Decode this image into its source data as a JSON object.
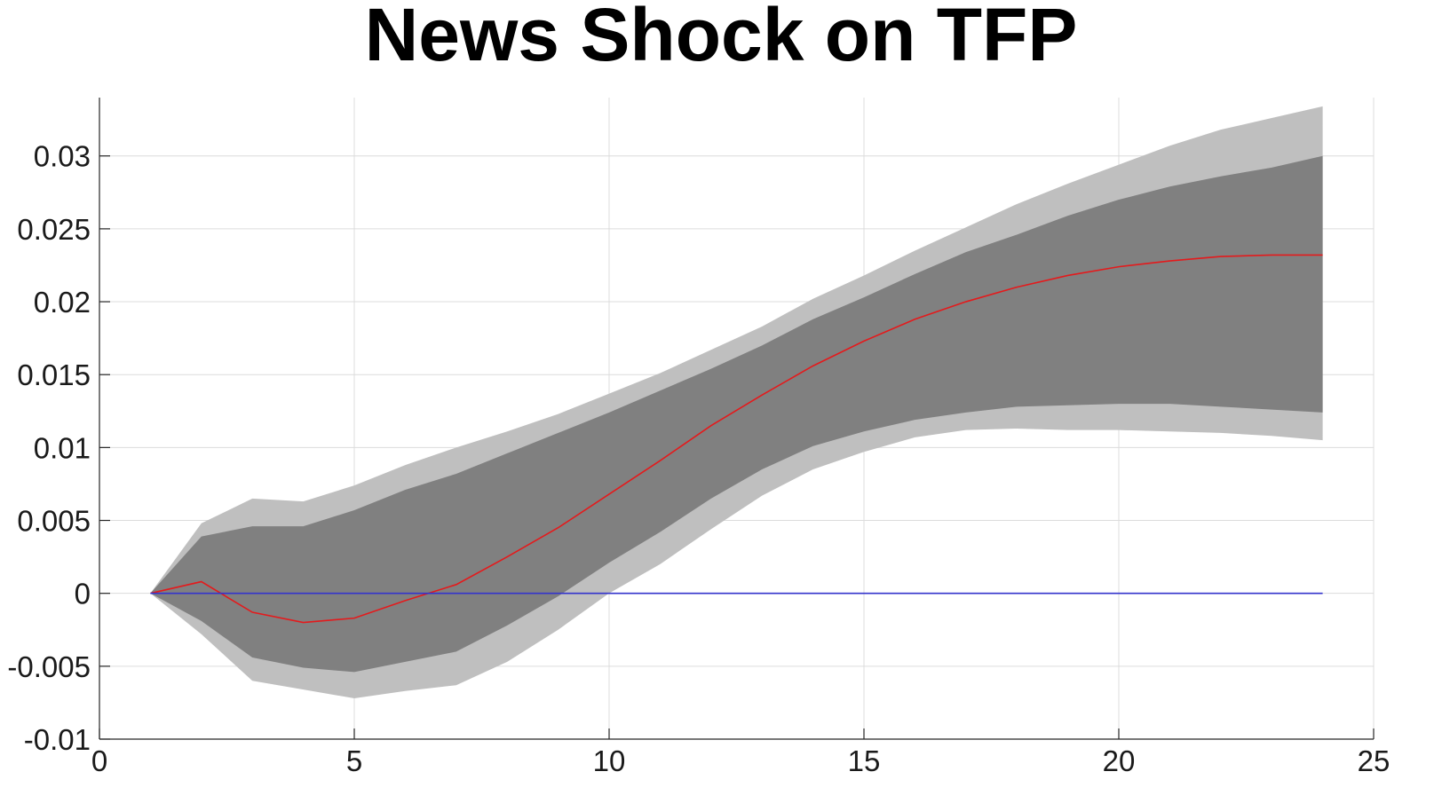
{
  "chart_data": {
    "type": "area",
    "title": "News Shock on TFP",
    "xlabel": "",
    "ylabel": "",
    "xlim": [
      0,
      25
    ],
    "ylim": [
      -0.01,
      0.034
    ],
    "xticks": [
      0,
      5,
      10,
      15,
      20,
      25
    ],
    "xtick_labels": [
      "0",
      "5",
      "10",
      "15",
      "20",
      "25"
    ],
    "yticks": [
      -0.01,
      -0.005,
      0,
      0.005,
      0.01,
      0.015,
      0.02,
      0.025,
      0.03
    ],
    "ytick_labels": [
      "-0.01",
      "-0.005",
      "0",
      "0.005",
      "0.01",
      "0.015",
      "0.02",
      "0.025",
      "0.03"
    ],
    "grid": true,
    "x": [
      1,
      2,
      3,
      4,
      5,
      6,
      7,
      8,
      9,
      10,
      11,
      12,
      13,
      14,
      15,
      16,
      17,
      18,
      19,
      20,
      21,
      22,
      23,
      24
    ],
    "series": [
      {
        "role": "outer-band",
        "color": "#bfbfbf",
        "upper": [
          0,
          0.0048,
          0.0065,
          0.0063,
          0.0074,
          0.0088,
          0.01,
          0.0111,
          0.0123,
          0.0137,
          0.0151,
          0.0167,
          0.0183,
          0.0202,
          0.0218,
          0.0235,
          0.0251,
          0.0267,
          0.0281,
          0.0294,
          0.0307,
          0.0318,
          0.0326,
          0.0334
        ],
        "lower": [
          0,
          -0.0028,
          -0.006,
          -0.0066,
          -0.0072,
          -0.0067,
          -0.0063,
          -0.0047,
          -0.0025,
          0.0,
          0.002,
          0.0044,
          0.0067,
          0.0085,
          0.0097,
          0.0107,
          0.0112,
          0.0113,
          0.0112,
          0.0112,
          0.0111,
          0.011,
          0.0108,
          0.0105
        ]
      },
      {
        "role": "inner-band",
        "color": "#808080",
        "upper": [
          0,
          0.0039,
          0.0046,
          0.0046,
          0.0057,
          0.0071,
          0.0082,
          0.0096,
          0.011,
          0.0124,
          0.0139,
          0.0154,
          0.017,
          0.0188,
          0.0203,
          0.0219,
          0.0234,
          0.0246,
          0.0259,
          0.027,
          0.0279,
          0.0286,
          0.0292,
          0.03
        ],
        "lower": [
          0,
          -0.0019,
          -0.0044,
          -0.0051,
          -0.0054,
          -0.0047,
          -0.004,
          -0.0022,
          -0.0002,
          0.0021,
          0.0042,
          0.0065,
          0.0085,
          0.0101,
          0.0111,
          0.0119,
          0.0124,
          0.0128,
          0.0129,
          0.013,
          0.013,
          0.0128,
          0.0126,
          0.0124
        ]
      },
      {
        "role": "median",
        "color": "#e41a1c",
        "values": [
          0,
          0.0008,
          -0.0013,
          -0.002,
          -0.0017,
          -0.0005,
          0.0006,
          0.0025,
          0.0045,
          0.0068,
          0.0091,
          0.0115,
          0.0136,
          0.0156,
          0.0173,
          0.0188,
          0.02,
          0.021,
          0.0218,
          0.0224,
          0.0228,
          0.0231,
          0.0232,
          0.0232
        ]
      },
      {
        "role": "zero-line",
        "color": "#3333cc",
        "values": [
          0,
          0,
          0,
          0,
          0,
          0,
          0,
          0,
          0,
          0,
          0,
          0,
          0,
          0,
          0,
          0,
          0,
          0,
          0,
          0,
          0,
          0,
          0,
          0
        ]
      }
    ]
  }
}
